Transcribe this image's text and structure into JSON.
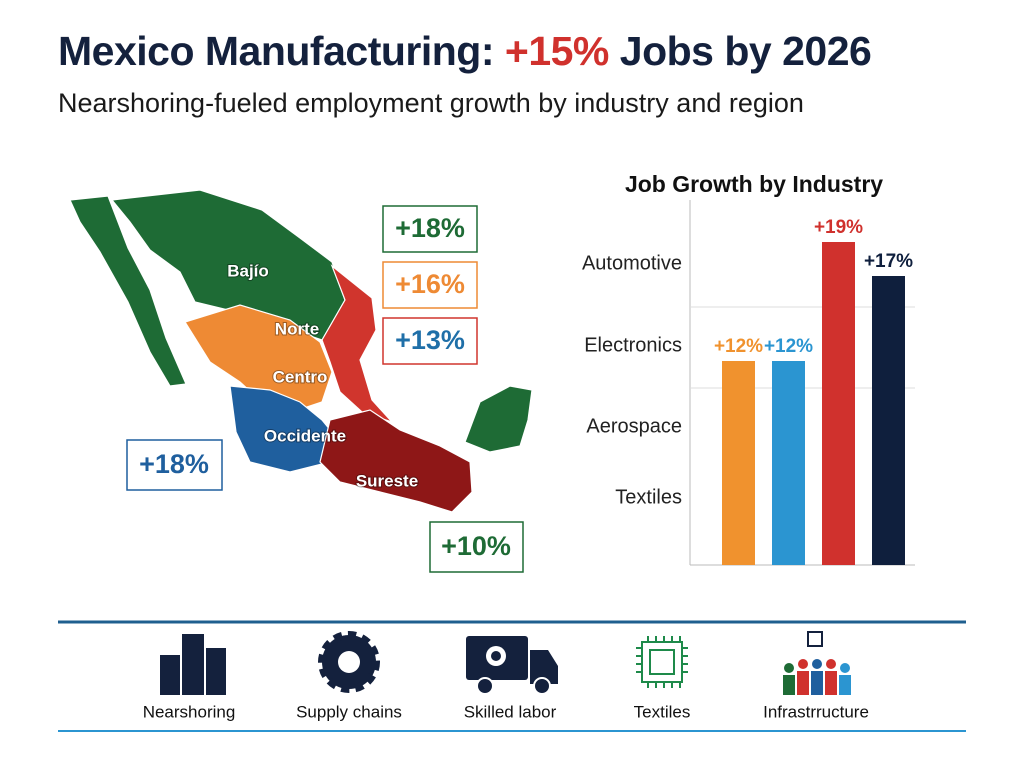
{
  "header": {
    "title_start": "Mexico Manufacturing: ",
    "title_highlight": "+15%",
    "title_end": " Jobs by 2026",
    "subtitle": "Nearshoring-fueled employment growth by industry and region"
  },
  "map": {
    "regions": [
      "Bajío",
      "Norte",
      "Centro",
      "Occidente",
      "Sureste"
    ],
    "callouts": [
      "+18%",
      "+16%",
      "+13%",
      "+18%",
      "+10%"
    ]
  },
  "chart_data": {
    "type": "bar",
    "title": "Job Growth by Industry",
    "categories": [
      "Automotive",
      "Electronics",
      "Aerospace",
      "Textiles"
    ],
    "values": [
      12,
      12,
      19,
      17
    ],
    "value_labels": [
      "+12%",
      "+12%",
      "+19%",
      "+17%"
    ],
    "colors": [
      "#f0922e",
      "#2b95d1",
      "#d0312d",
      "#0f1f3d"
    ]
  },
  "footer": {
    "items": [
      "Nearshoring",
      "Supply chains",
      "Skilled labor",
      "Textiles",
      "Infrastrructure"
    ]
  }
}
